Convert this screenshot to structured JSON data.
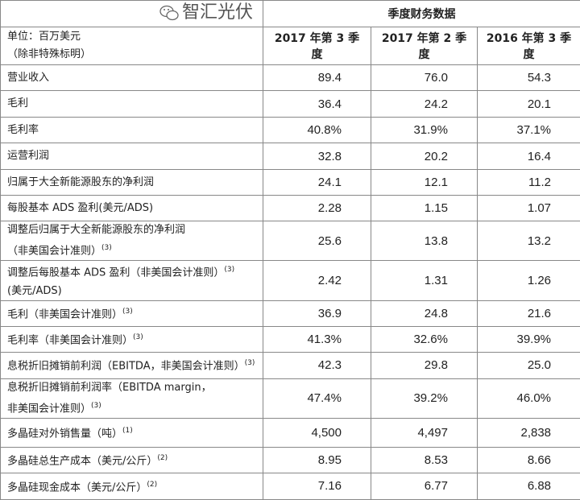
{
  "table": {
    "group_header": "季度财务数据",
    "unit_label": "单位：百万美元",
    "unit_note": "（除非特殊标明）",
    "columns": [
      "2017 年第 3 季度",
      "2017 年第 2 季度",
      "2016 年第 3 季度"
    ],
    "rows": [
      {
        "label": "营业收入",
        "values": [
          "89.4",
          "76.0",
          "54.3"
        ]
      },
      {
        "label": "毛利",
        "values": [
          "36.4",
          "24.2",
          "20.1"
        ]
      },
      {
        "label": "毛利率",
        "values": [
          "40.8%",
          "31.9%",
          "37.1%"
        ]
      },
      {
        "label": "运营利润",
        "values": [
          "32.8",
          "20.2",
          "16.4"
        ]
      },
      {
        "label": "归属于大全新能源股东的净利润",
        "values": [
          "24.1",
          "12.1",
          "11.2"
        ]
      },
      {
        "label": "每股基本 ADS 盈利(美元/ADS)",
        "values": [
          "2.28",
          "1.15",
          "1.07"
        ]
      },
      {
        "label": "调整后归属于大全新能源股东的净利润",
        "label2": "（非美国会计准则）",
        "note": "(3)",
        "values": [
          "25.6",
          "13.8",
          "13.2"
        ]
      },
      {
        "label": "调整后每股基本 ADS 盈利（非美国会计准则）",
        "note": "(3)",
        "label2": "(美元/ADS)",
        "values": [
          "2.42",
          "1.31",
          "1.26"
        ]
      },
      {
        "label": "毛利（非美国会计准则）",
        "note": "(3)",
        "values": [
          "36.9",
          "24.8",
          "21.6"
        ]
      },
      {
        "label": "毛利率（非美国会计准则）",
        "note": "(3)",
        "values": [
          "41.3%",
          "32.6%",
          "39.9%"
        ]
      },
      {
        "label": "息税折旧摊销前利润（EBITDA，非美国会计准则）",
        "note": "(3)",
        "values": [
          "42.3",
          "29.8",
          "25.0"
        ]
      },
      {
        "label": "息税折旧摊销前利润率（EBITDA margin，",
        "label2": "非美国会计准则）",
        "note": "(3)",
        "values": [
          "47.4%",
          "39.2%",
          "46.0%"
        ]
      },
      {
        "label": "多晶硅对外销售量（吨）",
        "note": "(1)",
        "values": [
          "4,500",
          "4,497",
          "2,838"
        ]
      },
      {
        "label": "多晶硅总生产成本（美元/公斤）",
        "note": "(2)",
        "values": [
          "8.95",
          "8.53",
          "8.66"
        ]
      },
      {
        "label": "多晶硅现金成本（美元/公斤）",
        "note": "(2)",
        "values": [
          "7.16",
          "6.77",
          "6.88"
        ]
      }
    ]
  },
  "watermark": {
    "text": "智汇光伏",
    "icon": "wechat-icon"
  }
}
